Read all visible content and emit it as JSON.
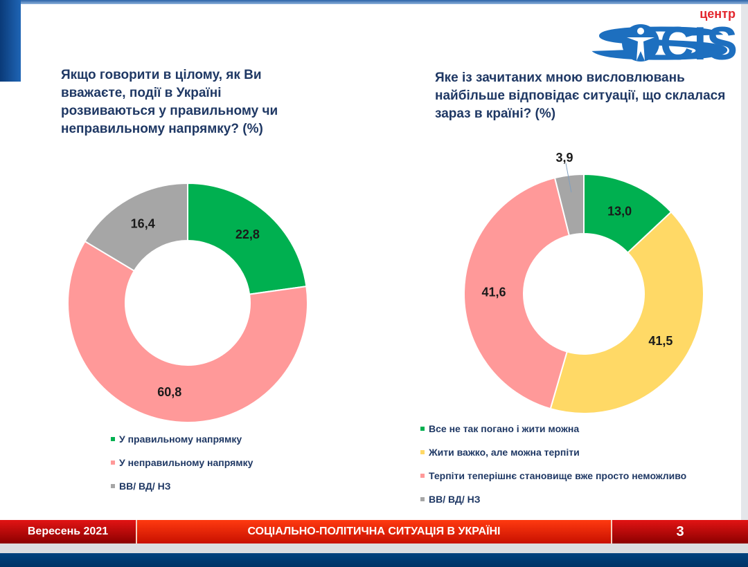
{
  "logo": {
    "small_text": "центр",
    "brand": "SOCIS"
  },
  "chart_data": [
    {
      "type": "pie",
      "donut": true,
      "title": "Якщо говорити в цілому, як Ви вважаєте, події в Україні розвиваються у правильному чи неправильному напрямку? (%)",
      "categories": [
        "У правильному напрямку",
        "У неправильному напрямку",
        "ВВ/ ВД/ НЗ"
      ],
      "values": [
        22.8,
        60.8,
        16.4
      ],
      "labels": [
        "22,8",
        "60,8",
        "16,4"
      ],
      "colors": [
        "#00b050",
        "#ff9999",
        "#a6a6a6"
      ],
      "legend": "bottom"
    },
    {
      "type": "pie",
      "donut": true,
      "title": "Яке із зачитаних мною висловлювань найбільше відповідає ситуації, що склалася зараз в країні? (%)",
      "categories": [
        "Все не так погано і жити можна",
        "Жити важко, але можна терпіти",
        "Терпіти теперішнє становище вже просто неможливо",
        "ВВ/ ВД/ НЗ"
      ],
      "values": [
        13.0,
        41.5,
        41.6,
        3.9
      ],
      "labels": [
        "13,0",
        "41,5",
        "41,6",
        "3,9"
      ],
      "colors": [
        "#00b050",
        "#ffd966",
        "#ff9999",
        "#a6a6a6"
      ],
      "legend": "bottom"
    }
  ],
  "footer": {
    "date": "Вересень 2021",
    "title": "СОЦІАЛЬНО-ПОЛІТИЧНА СИТУАЦІЯ В УКРАЇНІ",
    "page": "3"
  }
}
